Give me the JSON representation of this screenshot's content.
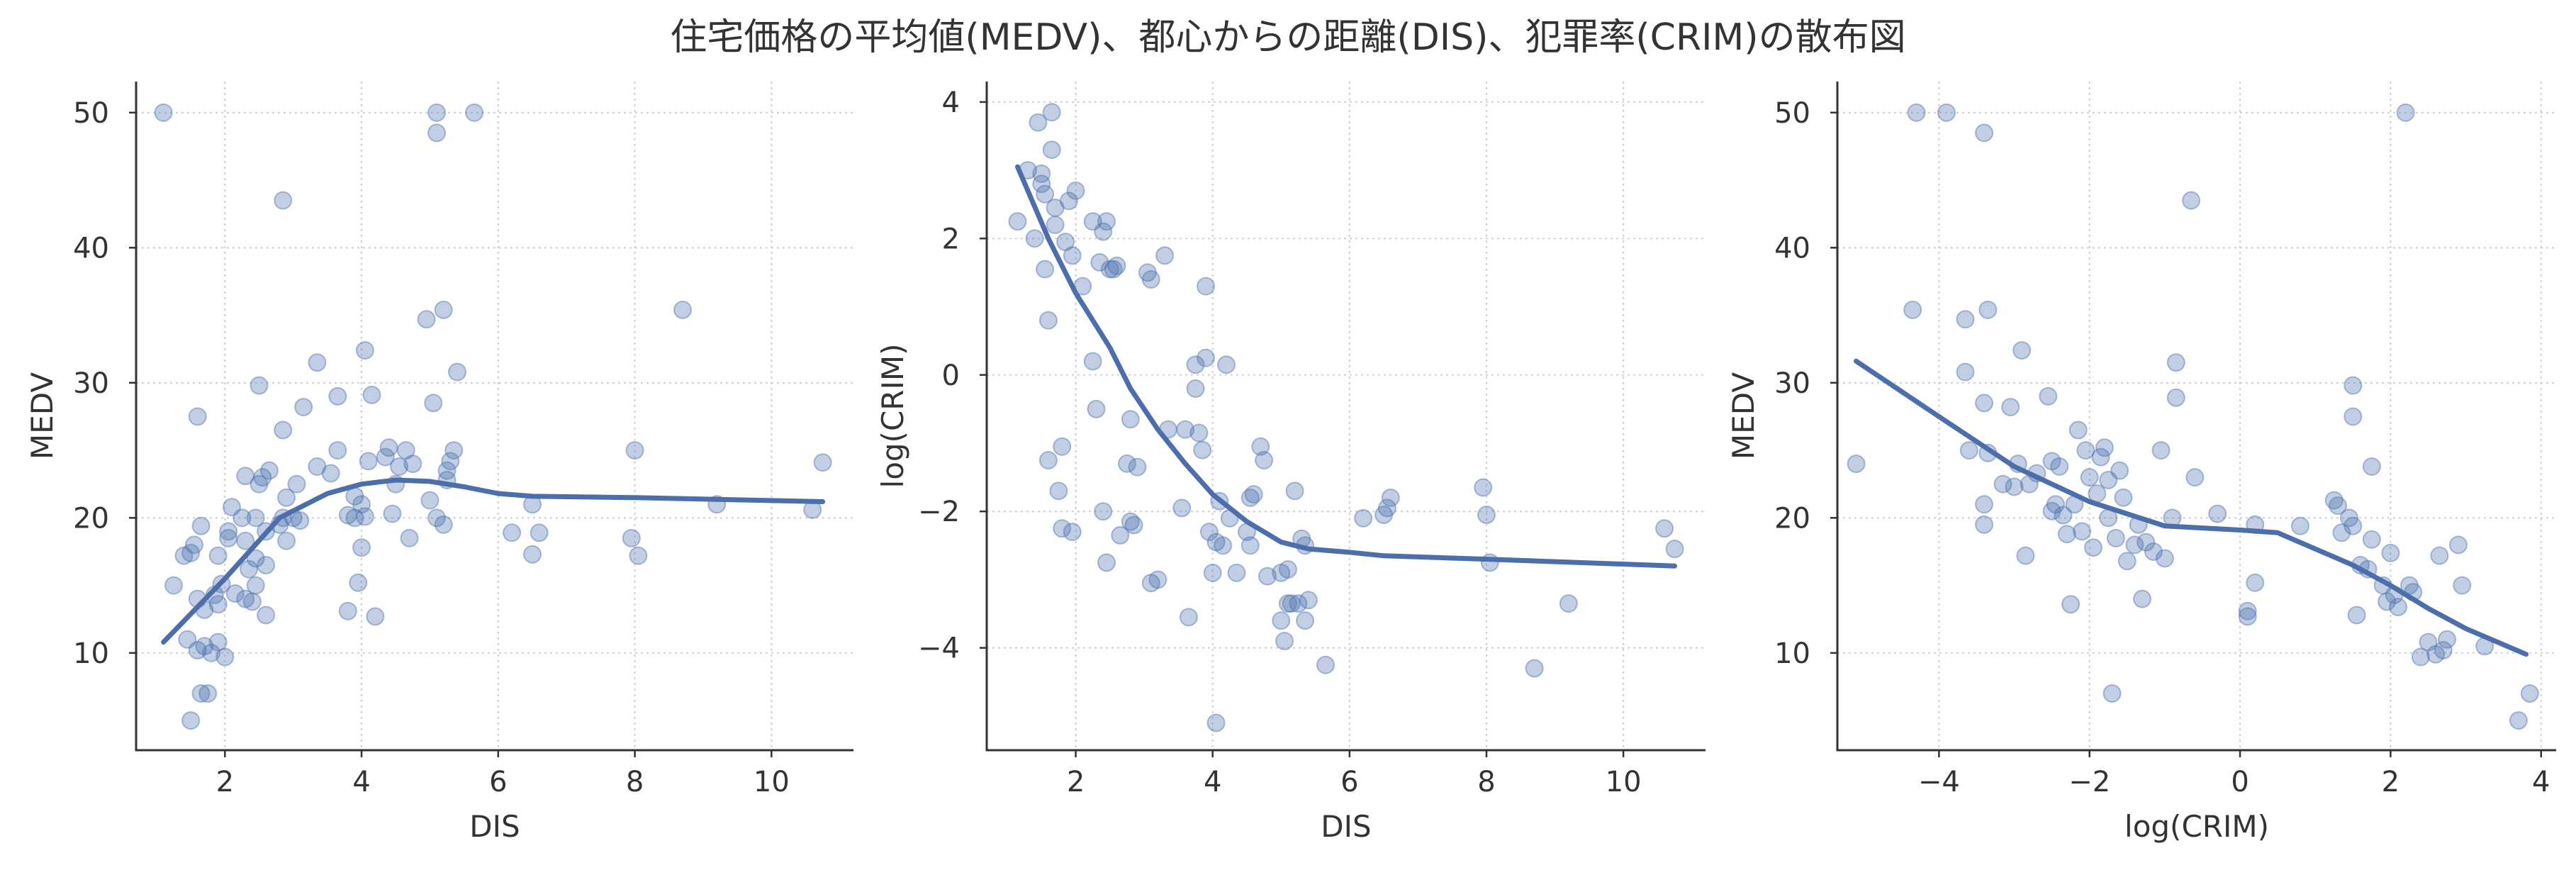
{
  "title": "住宅価格の平均値(MEDV)、都心からの距離(DIS)、犯罪率(CRIM)の散布図",
  "colors": {
    "point": "#4c72b0",
    "trend": "#4c6eab",
    "axis": "#333333",
    "grid": "#cfcfcf"
  },
  "chart_data": [
    {
      "type": "scatter",
      "xlabel": "DIS",
      "ylabel": "MEDV",
      "xlim": [
        0.7,
        11.2
      ],
      "ylim": [
        2.8,
        52.3
      ],
      "xticks": [
        2,
        4,
        6,
        8,
        10
      ],
      "yticks": [
        10,
        20,
        30,
        40,
        50
      ],
      "grid": true,
      "points": [
        [
          1.1,
          50.0
        ],
        [
          1.25,
          15.0
        ],
        [
          1.4,
          17.2
        ],
        [
          1.45,
          11.0
        ],
        [
          1.5,
          5.0
        ],
        [
          1.5,
          17.4
        ],
        [
          1.55,
          18.0
        ],
        [
          1.6,
          10.2
        ],
        [
          1.6,
          14.0
        ],
        [
          1.6,
          27.5
        ],
        [
          1.65,
          7.0
        ],
        [
          1.65,
          19.4
        ],
        [
          1.7,
          10.5
        ],
        [
          1.7,
          13.2
        ],
        [
          1.75,
          7.0
        ],
        [
          1.8,
          10.0
        ],
        [
          1.85,
          14.3
        ],
        [
          1.9,
          10.8
        ],
        [
          1.9,
          13.6
        ],
        [
          1.9,
          17.2
        ],
        [
          1.95,
          15.1
        ],
        [
          2.0,
          9.7
        ],
        [
          2.05,
          18.5
        ],
        [
          2.05,
          19.0
        ],
        [
          2.1,
          20.8
        ],
        [
          2.15,
          14.4
        ],
        [
          2.25,
          20.0
        ],
        [
          2.3,
          14.0
        ],
        [
          2.3,
          18.3
        ],
        [
          2.3,
          23.1
        ],
        [
          2.35,
          16.2
        ],
        [
          2.4,
          13.8
        ],
        [
          2.45,
          15.0
        ],
        [
          2.45,
          17.0
        ],
        [
          2.45,
          20.0
        ],
        [
          2.5,
          22.5
        ],
        [
          2.5,
          29.8
        ],
        [
          2.55,
          23.0
        ],
        [
          2.6,
          12.8
        ],
        [
          2.6,
          16.5
        ],
        [
          2.6,
          19.0
        ],
        [
          2.65,
          23.5
        ],
        [
          2.8,
          19.5
        ],
        [
          2.85,
          20.0
        ],
        [
          2.85,
          26.5
        ],
        [
          2.85,
          43.5
        ],
        [
          2.9,
          18.3
        ],
        [
          2.9,
          21.5
        ],
        [
          3.0,
          20.0
        ],
        [
          3.05,
          22.5
        ],
        [
          3.1,
          19.8
        ],
        [
          3.15,
          28.2
        ],
        [
          3.35,
          23.8
        ],
        [
          3.35,
          31.5
        ],
        [
          3.55,
          23.3
        ],
        [
          3.65,
          25.0
        ],
        [
          3.65,
          29.0
        ],
        [
          3.8,
          13.1
        ],
        [
          3.8,
          20.2
        ],
        [
          3.9,
          20.0
        ],
        [
          3.9,
          21.6
        ],
        [
          3.95,
          15.2
        ],
        [
          4.0,
          17.8
        ],
        [
          4.0,
          21.0
        ],
        [
          4.05,
          20.1
        ],
        [
          4.05,
          32.4
        ],
        [
          4.1,
          24.2
        ],
        [
          4.15,
          29.1
        ],
        [
          4.2,
          12.7
        ],
        [
          4.35,
          24.5
        ],
        [
          4.4,
          25.2
        ],
        [
          4.45,
          20.3
        ],
        [
          4.5,
          22.5
        ],
        [
          4.55,
          23.8
        ],
        [
          4.65,
          25.0
        ],
        [
          4.7,
          18.5
        ],
        [
          4.75,
          24.0
        ],
        [
          4.95,
          34.7
        ],
        [
          5.0,
          21.3
        ],
        [
          5.05,
          28.5
        ],
        [
          5.1,
          20.0
        ],
        [
          5.1,
          48.5
        ],
        [
          5.1,
          50.0
        ],
        [
          5.2,
          19.5
        ],
        [
          5.2,
          35.4
        ],
        [
          5.25,
          22.8
        ],
        [
          5.25,
          23.5
        ],
        [
          5.3,
          24.2
        ],
        [
          5.35,
          25.0
        ],
        [
          5.4,
          30.8
        ],
        [
          5.65,
          50.0
        ],
        [
          6.2,
          18.9
        ],
        [
          6.5,
          17.3
        ],
        [
          6.5,
          21.0
        ],
        [
          6.6,
          18.9
        ],
        [
          7.95,
          18.5
        ],
        [
          8.0,
          25.0
        ],
        [
          8.05,
          17.2
        ],
        [
          8.7,
          35.4
        ],
        [
          9.2,
          21.0
        ],
        [
          10.6,
          20.6
        ],
        [
          10.75,
          24.1
        ]
      ],
      "trend": [
        [
          1.1,
          10.8
        ],
        [
          2.0,
          15.5
        ],
        [
          2.8,
          20.0
        ],
        [
          3.5,
          21.8
        ],
        [
          4.0,
          22.5
        ],
        [
          4.5,
          22.8
        ],
        [
          5.0,
          22.7
        ],
        [
          5.5,
          22.3
        ],
        [
          6.0,
          21.8
        ],
        [
          6.5,
          21.6
        ],
        [
          8.0,
          21.5
        ],
        [
          10.75,
          21.2
        ]
      ]
    },
    {
      "type": "scatter",
      "xlabel": "DIS",
      "ylabel": "log(CRIM)",
      "xlim": [
        0.7,
        11.2
      ],
      "ylim": [
        -5.5,
        4.3
      ],
      "xticks": [
        2,
        4,
        6,
        8,
        10
      ],
      "yticks": [
        -4,
        -2,
        0,
        2,
        4
      ],
      "grid": true,
      "points": [
        [
          1.15,
          2.25
        ],
        [
          1.3,
          3.0
        ],
        [
          1.4,
          2.0
        ],
        [
          1.45,
          3.7
        ],
        [
          1.5,
          2.8
        ],
        [
          1.5,
          2.95
        ],
        [
          1.55,
          2.65
        ],
        [
          1.55,
          1.55
        ],
        [
          1.6,
          0.8
        ],
        [
          1.6,
          -1.25
        ],
        [
          1.65,
          3.85
        ],
        [
          1.65,
          3.3
        ],
        [
          1.7,
          2.45
        ],
        [
          1.7,
          2.2
        ],
        [
          1.75,
          -1.7
        ],
        [
          1.8,
          -2.25
        ],
        [
          1.8,
          -1.05
        ],
        [
          1.85,
          1.95
        ],
        [
          1.9,
          2.55
        ],
        [
          1.95,
          1.75
        ],
        [
          1.95,
          -2.3
        ],
        [
          2.0,
          2.7
        ],
        [
          2.1,
          1.3
        ],
        [
          2.25,
          0.2
        ],
        [
          2.25,
          2.25
        ],
        [
          2.3,
          -0.5
        ],
        [
          2.35,
          1.65
        ],
        [
          2.4,
          2.1
        ],
        [
          2.4,
          -2.0
        ],
        [
          2.45,
          2.25
        ],
        [
          2.45,
          -2.75
        ],
        [
          2.5,
          1.55
        ],
        [
          2.55,
          1.55
        ],
        [
          2.6,
          1.6
        ],
        [
          2.65,
          -2.35
        ],
        [
          2.75,
          -1.3
        ],
        [
          2.8,
          -2.15
        ],
        [
          2.8,
          -0.65
        ],
        [
          2.85,
          -2.2
        ],
        [
          2.9,
          -1.35
        ],
        [
          3.05,
          1.5
        ],
        [
          3.1,
          1.4
        ],
        [
          3.1,
          -3.05
        ],
        [
          3.2,
          -3.0
        ],
        [
          3.3,
          1.75
        ],
        [
          3.35,
          -0.8
        ],
        [
          3.55,
          -1.95
        ],
        [
          3.6,
          -0.8
        ],
        [
          3.65,
          -3.55
        ],
        [
          3.75,
          -0.2
        ],
        [
          3.75,
          0.15
        ],
        [
          3.8,
          -0.85
        ],
        [
          3.85,
          -1.1
        ],
        [
          3.9,
          0.25
        ],
        [
          3.9,
          1.3
        ],
        [
          3.95,
          -2.3
        ],
        [
          4.0,
          -2.9
        ],
        [
          4.05,
          -2.45
        ],
        [
          4.05,
          -5.1
        ],
        [
          4.1,
          -1.85
        ],
        [
          4.15,
          -2.5
        ],
        [
          4.2,
          0.15
        ],
        [
          4.25,
          -2.1
        ],
        [
          4.35,
          -2.9
        ],
        [
          4.5,
          -2.3
        ],
        [
          4.55,
          -2.5
        ],
        [
          4.55,
          -1.8
        ],
        [
          4.6,
          -1.75
        ],
        [
          4.7,
          -1.05
        ],
        [
          4.75,
          -1.25
        ],
        [
          4.8,
          -2.95
        ],
        [
          5.0,
          -2.9
        ],
        [
          5.0,
          -3.6
        ],
        [
          5.05,
          -3.9
        ],
        [
          5.1,
          -3.35
        ],
        [
          5.1,
          -2.85
        ],
        [
          5.15,
          -3.35
        ],
        [
          5.2,
          -1.7
        ],
        [
          5.25,
          -3.35
        ],
        [
          5.3,
          -2.4
        ],
        [
          5.35,
          -2.5
        ],
        [
          5.35,
          -3.6
        ],
        [
          5.4,
          -3.3
        ],
        [
          5.65,
          -4.25
        ],
        [
          6.2,
          -2.1
        ],
        [
          6.5,
          -2.05
        ],
        [
          6.55,
          -1.95
        ],
        [
          6.6,
          -1.8
        ],
        [
          7.95,
          -1.65
        ],
        [
          8.0,
          -2.05
        ],
        [
          8.05,
          -2.75
        ],
        [
          8.7,
          -4.3
        ],
        [
          9.2,
          -3.35
        ],
        [
          10.6,
          -2.25
        ],
        [
          10.75,
          -2.55
        ]
      ],
      "trend": [
        [
          1.15,
          3.05
        ],
        [
          1.6,
          2.0
        ],
        [
          2.0,
          1.2
        ],
        [
          2.5,
          0.4
        ],
        [
          2.8,
          -0.2
        ],
        [
          3.2,
          -0.8
        ],
        [
          3.6,
          -1.3
        ],
        [
          4.0,
          -1.75
        ],
        [
          4.5,
          -2.15
        ],
        [
          5.0,
          -2.45
        ],
        [
          5.4,
          -2.55
        ],
        [
          6.0,
          -2.6
        ],
        [
          6.5,
          -2.65
        ],
        [
          8.0,
          -2.7
        ],
        [
          10.75,
          -2.8
        ]
      ]
    },
    {
      "type": "scatter",
      "xlabel": "log(CRIM)",
      "ylabel": "MEDV",
      "xlim": [
        -5.35,
        4.2
      ],
      "ylim": [
        2.8,
        52.3
      ],
      "xticks": [
        -4,
        -2,
        0,
        2,
        4
      ],
      "yticks": [
        10,
        20,
        30,
        40,
        50
      ],
      "grid": true,
      "points": [
        [
          -5.1,
          24.0
        ],
        [
          -4.35,
          35.4
        ],
        [
          -4.3,
          50.0
        ],
        [
          -3.9,
          50.0
        ],
        [
          -3.65,
          34.7
        ],
        [
          -3.65,
          30.8
        ],
        [
          -3.6,
          25.0
        ],
        [
          -3.4,
          48.5
        ],
        [
          -3.4,
          28.5
        ],
        [
          -3.4,
          21.0
        ],
        [
          -3.4,
          19.5
        ],
        [
          -3.35,
          35.4
        ],
        [
          -3.35,
          24.8
        ],
        [
          -3.15,
          22.5
        ],
        [
          -3.05,
          28.2
        ],
        [
          -3.0,
          22.3
        ],
        [
          -2.95,
          24.0
        ],
        [
          -2.9,
          32.4
        ],
        [
          -2.85,
          17.2
        ],
        [
          -2.8,
          22.5
        ],
        [
          -2.7,
          23.3
        ],
        [
          -2.55,
          29.0
        ],
        [
          -2.5,
          24.2
        ],
        [
          -2.5,
          20.5
        ],
        [
          -2.45,
          21.0
        ],
        [
          -2.4,
          23.8
        ],
        [
          -2.35,
          20.2
        ],
        [
          -2.3,
          18.8
        ],
        [
          -2.25,
          13.6
        ],
        [
          -2.2,
          21.0
        ],
        [
          -2.15,
          26.5
        ],
        [
          -2.1,
          19.0
        ],
        [
          -2.05,
          25.0
        ],
        [
          -2.0,
          23.0
        ],
        [
          -1.95,
          17.8
        ],
        [
          -1.9,
          21.8
        ],
        [
          -1.85,
          24.5
        ],
        [
          -1.8,
          25.2
        ],
        [
          -1.75,
          20.0
        ],
        [
          -1.75,
          22.8
        ],
        [
          -1.7,
          7.0
        ],
        [
          -1.65,
          18.5
        ],
        [
          -1.6,
          23.5
        ],
        [
          -1.55,
          21.5
        ],
        [
          -1.5,
          16.8
        ],
        [
          -1.4,
          18.0
        ],
        [
          -1.35,
          19.5
        ],
        [
          -1.3,
          14.0
        ],
        [
          -1.25,
          18.2
        ],
        [
          -1.15,
          17.5
        ],
        [
          -1.05,
          25.0
        ],
        [
          -1.0,
          17.0
        ],
        [
          -0.9,
          20.0
        ],
        [
          -0.85,
          31.5
        ],
        [
          -0.85,
          28.9
        ],
        [
          -0.65,
          43.5
        ],
        [
          -0.6,
          23.0
        ],
        [
          -0.3,
          20.3
        ],
        [
          0.1,
          12.7
        ],
        [
          0.1,
          13.1
        ],
        [
          0.2,
          19.5
        ],
        [
          0.2,
          15.2
        ],
        [
          0.8,
          19.4
        ],
        [
          1.25,
          21.3
        ],
        [
          1.3,
          20.9
        ],
        [
          1.35,
          18.9
        ],
        [
          1.45,
          20.0
        ],
        [
          1.5,
          19.4
        ],
        [
          1.5,
          29.8
        ],
        [
          1.5,
          27.5
        ],
        [
          1.55,
          12.8
        ],
        [
          1.6,
          16.5
        ],
        [
          1.7,
          16.2
        ],
        [
          1.75,
          23.8
        ],
        [
          1.75,
          18.4
        ],
        [
          1.9,
          15.0
        ],
        [
          1.95,
          13.8
        ],
        [
          2.0,
          17.4
        ],
        [
          2.05,
          14.3
        ],
        [
          2.1,
          13.4
        ],
        [
          2.2,
          50.0
        ],
        [
          2.25,
          15.0
        ],
        [
          2.3,
          14.5
        ],
        [
          2.4,
          9.7
        ],
        [
          2.5,
          10.8
        ],
        [
          2.6,
          9.9
        ],
        [
          2.65,
          17.2
        ],
        [
          2.7,
          10.2
        ],
        [
          2.75,
          11.0
        ],
        [
          2.9,
          18.0
        ],
        [
          2.95,
          15.0
        ],
        [
          3.25,
          10.5
        ],
        [
          3.7,
          5.0
        ],
        [
          3.85,
          7.0
        ]
      ],
      "trend": [
        [
          -5.1,
          31.6
        ],
        [
          -4.0,
          27.5
        ],
        [
          -3.0,
          23.8
        ],
        [
          -2.0,
          21.2
        ],
        [
          -1.0,
          19.4
        ],
        [
          0.0,
          19.1
        ],
        [
          0.5,
          18.9
        ],
        [
          1.0,
          17.7
        ],
        [
          1.5,
          16.5
        ],
        [
          2.0,
          15.0
        ],
        [
          2.5,
          13.3
        ],
        [
          3.0,
          11.8
        ],
        [
          3.8,
          9.9
        ]
      ]
    }
  ]
}
